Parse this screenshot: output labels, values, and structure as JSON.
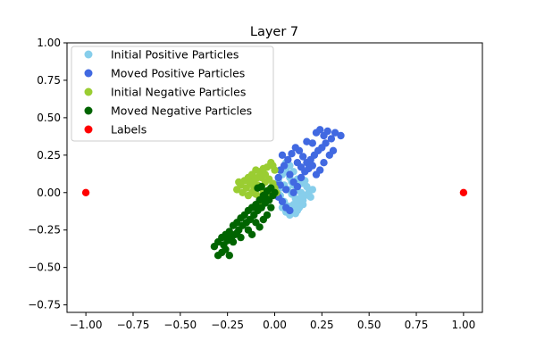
{
  "chart_data": {
    "type": "scatter",
    "title": "Layer 7",
    "xlabel": "",
    "ylabel": "",
    "xlim": [
      -1.1,
      1.1
    ],
    "ylim": [
      -0.8,
      1.0
    ],
    "xticks": [
      -1.0,
      -0.75,
      -0.5,
      -0.25,
      0.0,
      0.25,
      0.5,
      0.75,
      1.0
    ],
    "yticks": [
      -0.75,
      -0.5,
      -0.25,
      0.0,
      0.25,
      0.5,
      0.75,
      1.0
    ],
    "xtick_labels": [
      "−1.00",
      "−0.75",
      "−0.50",
      "−0.25",
      "0.00",
      "0.25",
      "0.50",
      "0.75",
      "1.00"
    ],
    "ytick_labels": [
      "−0.75",
      "−0.50",
      "−0.25",
      "0.00",
      "0.25",
      "0.50",
      "0.75",
      "1.00"
    ],
    "grid": false,
    "legend_position": "top-left",
    "series": [
      {
        "name": "Initial Positive Particles",
        "color": "#87ceeb",
        "points": [
          [
            0.02,
            0.08
          ],
          [
            0.04,
            0.12
          ],
          [
            0.06,
            0.15
          ],
          [
            0.08,
            0.1
          ],
          [
            0.1,
            0.05
          ],
          [
            0.12,
            0.02
          ],
          [
            0.14,
            0.0
          ],
          [
            0.16,
            -0.02
          ],
          [
            0.18,
            0.0
          ],
          [
            0.2,
            0.02
          ],
          [
            0.05,
            0.05
          ],
          [
            0.07,
            0.02
          ],
          [
            0.09,
            -0.01
          ],
          [
            0.11,
            -0.04
          ],
          [
            0.13,
            -0.06
          ],
          [
            0.15,
            -0.08
          ],
          [
            0.03,
            -0.02
          ],
          [
            0.05,
            -0.06
          ],
          [
            0.07,
            -0.09
          ],
          [
            0.09,
            -0.12
          ],
          [
            0.11,
            -0.14
          ],
          [
            0.13,
            -0.1
          ],
          [
            0.15,
            -0.05
          ],
          [
            0.17,
            0.04
          ],
          [
            0.06,
            0.2
          ],
          [
            0.08,
            0.18
          ],
          [
            0.1,
            0.14
          ],
          [
            0.12,
            0.09
          ],
          [
            0.14,
            0.06
          ],
          [
            0.16,
            0.08
          ],
          [
            0.01,
            0.0
          ],
          [
            0.03,
            0.03
          ],
          [
            0.04,
            -0.1
          ],
          [
            0.06,
            -0.13
          ],
          [
            0.08,
            -0.15
          ],
          [
            0.1,
            -0.08
          ],
          [
            0.12,
            -0.12
          ],
          [
            0.14,
            -0.03
          ],
          [
            0.19,
            -0.03
          ],
          [
            0.09,
            0.07
          ]
        ]
      },
      {
        "name": "Moved Positive Particles",
        "color": "#4169e1",
        "points": [
          [
            0.22,
            0.4
          ],
          [
            0.24,
            0.42
          ],
          [
            0.26,
            0.38
          ],
          [
            0.28,
            0.41
          ],
          [
            0.3,
            0.36
          ],
          [
            0.32,
            0.4
          ],
          [
            0.35,
            0.38
          ],
          [
            0.27,
            0.33
          ],
          [
            0.25,
            0.3
          ],
          [
            0.23,
            0.28
          ],
          [
            0.21,
            0.25
          ],
          [
            0.19,
            0.22
          ],
          [
            0.17,
            0.2
          ],
          [
            0.15,
            0.24
          ],
          [
            0.13,
            0.28
          ],
          [
            0.11,
            0.3
          ],
          [
            0.09,
            0.26
          ],
          [
            0.07,
            0.22
          ],
          [
            0.05,
            0.18
          ],
          [
            0.03,
            0.15
          ],
          [
            0.02,
            0.1
          ],
          [
            0.01,
            0.05
          ],
          [
            0.0,
            0.0
          ],
          [
            0.02,
            -0.03
          ],
          [
            0.04,
            -0.06
          ],
          [
            0.06,
            -0.1
          ],
          [
            0.08,
            -0.12
          ],
          [
            0.1,
            0.0
          ],
          [
            0.12,
            0.04
          ],
          [
            0.14,
            0.1
          ],
          [
            0.16,
            0.14
          ],
          [
            0.18,
            0.16
          ],
          [
            0.2,
            0.18
          ],
          [
            0.22,
            0.12
          ],
          [
            0.24,
            0.15
          ],
          [
            0.26,
            0.2
          ],
          [
            0.29,
            0.25
          ],
          [
            0.31,
            0.28
          ],
          [
            0.2,
            0.33
          ],
          [
            0.17,
            0.34
          ],
          [
            0.04,
            0.25
          ],
          [
            0.08,
            0.12
          ],
          [
            0.1,
            0.07
          ],
          [
            0.06,
            0.02
          ],
          [
            0.03,
            0.05
          ],
          [
            0.01,
            -0.01
          ],
          [
            0.12,
            0.2
          ],
          [
            0.14,
            0.17
          ]
        ]
      },
      {
        "name": "Initial Negative Particles",
        "color": "#9acd32",
        "points": [
          [
            -0.18,
            0.05
          ],
          [
            -0.16,
            0.08
          ],
          [
            -0.14,
            0.1
          ],
          [
            -0.12,
            0.12
          ],
          [
            -0.1,
            0.15
          ],
          [
            -0.08,
            0.14
          ],
          [
            -0.06,
            0.16
          ],
          [
            -0.04,
            0.17
          ],
          [
            -0.02,
            0.2
          ],
          [
            -0.01,
            0.18
          ],
          [
            0.0,
            0.15
          ],
          [
            -0.2,
            0.02
          ],
          [
            -0.17,
            0.0
          ],
          [
            -0.15,
            0.03
          ],
          [
            -0.13,
            0.06
          ],
          [
            -0.11,
            0.08
          ],
          [
            -0.09,
            0.1
          ],
          [
            -0.07,
            0.1
          ],
          [
            -0.05,
            0.12
          ],
          [
            -0.03,
            0.09
          ],
          [
            -0.01,
            0.06
          ],
          [
            0.0,
            0.03
          ],
          [
            0.01,
            0.0
          ],
          [
            -0.02,
            -0.02
          ],
          [
            -0.04,
            -0.04
          ],
          [
            -0.06,
            -0.06
          ],
          [
            -0.08,
            -0.03
          ],
          [
            -0.1,
            -0.01
          ],
          [
            -0.12,
            0.0
          ],
          [
            -0.14,
            -0.02
          ],
          [
            -0.09,
            0.05
          ],
          [
            -0.05,
            0.07
          ],
          [
            -0.03,
            0.02
          ],
          [
            -0.07,
            -0.08
          ],
          [
            -0.11,
            0.03
          ],
          [
            -0.19,
            0.07
          ],
          [
            -0.06,
            0.0
          ]
        ]
      },
      {
        "name": "Moved Negative Particles",
        "color": "#006400",
        "points": [
          [
            -0.3,
            -0.42
          ],
          [
            -0.28,
            -0.4
          ],
          [
            -0.26,
            -0.38
          ],
          [
            -0.24,
            -0.42
          ],
          [
            -0.32,
            -0.36
          ],
          [
            -0.3,
            -0.33
          ],
          [
            -0.27,
            -0.35
          ],
          [
            -0.25,
            -0.32
          ],
          [
            -0.23,
            -0.3
          ],
          [
            -0.21,
            -0.28
          ],
          [
            -0.19,
            -0.25
          ],
          [
            -0.17,
            -0.22
          ],
          [
            -0.15,
            -0.2
          ],
          [
            -0.13,
            -0.18
          ],
          [
            -0.11,
            -0.15
          ],
          [
            -0.09,
            -0.12
          ],
          [
            -0.07,
            -0.1
          ],
          [
            -0.05,
            -0.07
          ],
          [
            -0.03,
            -0.05
          ],
          [
            -0.01,
            -0.02
          ],
          [
            0.0,
            0.0
          ],
          [
            -0.02,
            0.03
          ],
          [
            -0.04,
            0.01
          ],
          [
            -0.06,
            -0.02
          ],
          [
            -0.08,
            -0.05
          ],
          [
            -0.1,
            -0.08
          ],
          [
            -0.12,
            -0.1
          ],
          [
            -0.14,
            -0.12
          ],
          [
            -0.16,
            -0.15
          ],
          [
            -0.18,
            -0.17
          ],
          [
            -0.2,
            -0.2
          ],
          [
            -0.22,
            -0.22
          ],
          [
            -0.24,
            -0.26
          ],
          [
            -0.26,
            -0.28
          ],
          [
            -0.28,
            -0.3
          ],
          [
            -0.1,
            -0.2
          ],
          [
            -0.08,
            -0.23
          ],
          [
            -0.06,
            -0.18
          ],
          [
            -0.04,
            -0.15
          ],
          [
            -0.02,
            -0.1
          ],
          [
            -0.18,
            -0.3
          ],
          [
            -0.2,
            -0.27
          ],
          [
            -0.22,
            -0.33
          ],
          [
            -0.14,
            -0.25
          ],
          [
            -0.12,
            -0.28
          ],
          [
            -0.05,
            -0.03
          ],
          [
            -0.07,
            0.04
          ],
          [
            -0.09,
            0.03
          ]
        ]
      },
      {
        "name": "Labels",
        "color": "#ff0000",
        "points": [
          [
            -1.0,
            0.0
          ],
          [
            1.0,
            0.0
          ]
        ]
      }
    ]
  }
}
